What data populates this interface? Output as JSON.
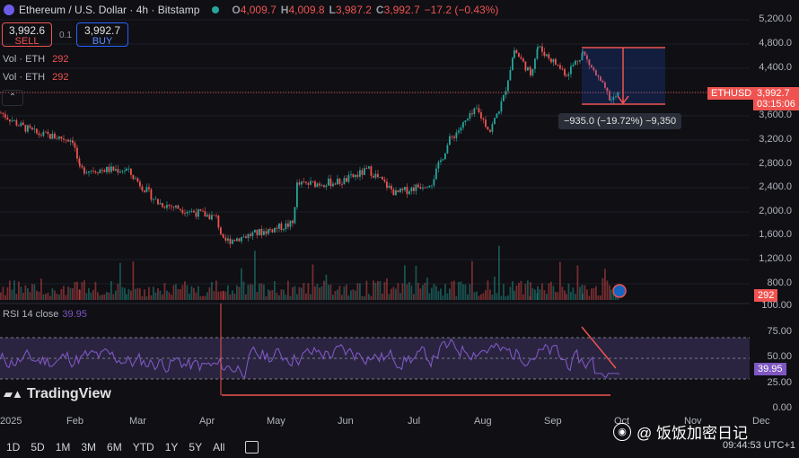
{
  "header": {
    "title": "Ethereum / U.S. Dollar · 4h · Bitstamp",
    "open_label": "O",
    "open": "4,009.7",
    "high_label": "H",
    "high": "4,009.8",
    "low_label": "L",
    "low": "3,987.2",
    "close_label": "C",
    "close": "3,992.7",
    "change": "−17.2 (−0.43%)"
  },
  "trade": {
    "sell_price": "3,992.6",
    "sell_label": "SELL",
    "spread": "0.1",
    "buy_price": "3,992.7",
    "buy_label": "BUY"
  },
  "volume_rows": [
    {
      "label": "Vol · ETH",
      "value": "292"
    },
    {
      "label": "Vol · ETH",
      "value": "292"
    }
  ],
  "collapse_icon": "chevron-up-icon",
  "price_axis": [
    "5,200.0",
    "4,800.0",
    "4,400.0",
    "3,600.0",
    "3,200.0",
    "2,800.0",
    "2,400.0",
    "2,000.0",
    "1,600.0",
    "1,200.0",
    "800.0"
  ],
  "symbol_tag": "ETHUSD",
  "price_tag": "3,992.7",
  "countdown": "03:15:06",
  "volume_tag": "292",
  "measure_label": "−935.0 (−19.72%) −9,350",
  "rsi": {
    "label": "RSI 14 close",
    "value": "39.95",
    "axis": [
      "100.00",
      "75.00",
      "50.00",
      "25.00",
      "0.00"
    ]
  },
  "tv_logo": "TradingView",
  "time_axis": [
    "2025",
    "Feb",
    "Mar",
    "Apr",
    "May",
    "Jun",
    "Jul",
    "Aug",
    "Sep",
    "Oct",
    "Nov",
    "Dec"
  ],
  "timeframes": [
    "1D",
    "5D",
    "1M",
    "3M",
    "6M",
    "YTD",
    "1Y",
    "5Y",
    "All"
  ],
  "clock": "09:44:53 UTC+1",
  "watermark": "@ 饭饭加密日记",
  "colors": {
    "up": "#26a69a",
    "down": "#ef5350",
    "rsi": "#7e57c2",
    "accent": "#2962ff"
  },
  "chart_data": {
    "type": "line",
    "x": [
      "Jan",
      "Feb",
      "Mar",
      "Apr",
      "May",
      "Jun",
      "Jul",
      "Aug",
      "Sep",
      "Oct"
    ],
    "series": [
      {
        "values": [
          3600,
          2700,
          2100,
          1600,
          1800,
          2500,
          2600,
          3700,
          4400,
          3990
        ]
      }
    ],
    "ylim": [
      800,
      5200
    ],
    "rsi_values": [
      45,
      50,
      40,
      30,
      55,
      60,
      50,
      70,
      60,
      40
    ],
    "rsi_ylim": [
      0,
      100
    ]
  }
}
